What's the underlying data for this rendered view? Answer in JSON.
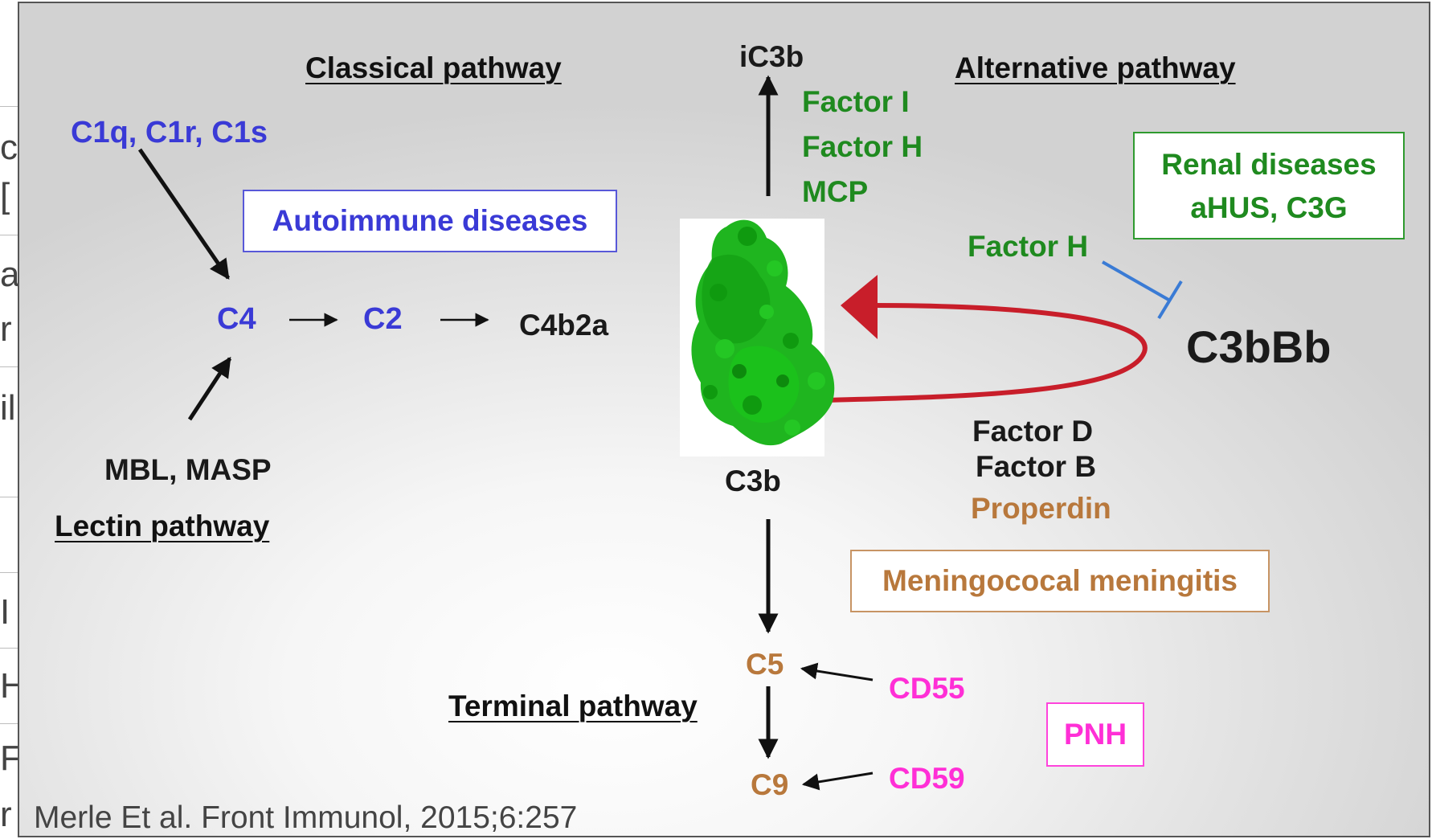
{
  "left_strip": {
    "fragments": [
      "c",
      "[",
      "a",
      "r",
      "il",
      "I",
      "H",
      "F",
      "r"
    ]
  },
  "headers": {
    "classical": "Classical pathway",
    "alternative": "Alternative pathway",
    "lectin": "Lectin pathway",
    "terminal": "Terminal pathway"
  },
  "nodes": {
    "c1": "C1q, C1r, C1s",
    "c4": "C4",
    "c2": "C2",
    "c4b2a": "C4b2a",
    "mbl": "MBL, MASP",
    "ic3b": "iC3b",
    "c3b": "C3b",
    "c3bbb": "C3bBb",
    "c5": "C5",
    "c9": "C9"
  },
  "regulators": {
    "factor_i": "Factor I",
    "factor_h_top": "Factor H",
    "mcp": "MCP",
    "factor_h_side": "Factor H",
    "factor_d": "Factor D",
    "factor_b": "Factor B",
    "properdin": "Properdin",
    "cd55": "CD55",
    "cd59": "CD59"
  },
  "disease_boxes": {
    "autoimmune": "Autoimmune diseases",
    "renal_line1": "Renal diseases",
    "renal_line2": "aHUS, C3G",
    "meningococcal": "Meningococal meningitis",
    "pnh": "PNH"
  },
  "citation": "Merle Et al. Front Immunol, 2015;6:257",
  "colors": {
    "blue": "#3a3ad6",
    "green": "#1f8a1f",
    "brown": "#b8783c",
    "pink": "#ff2fd6",
    "red_loop": "#c81e2a",
    "inhibit_line": "#3a7bd5"
  }
}
